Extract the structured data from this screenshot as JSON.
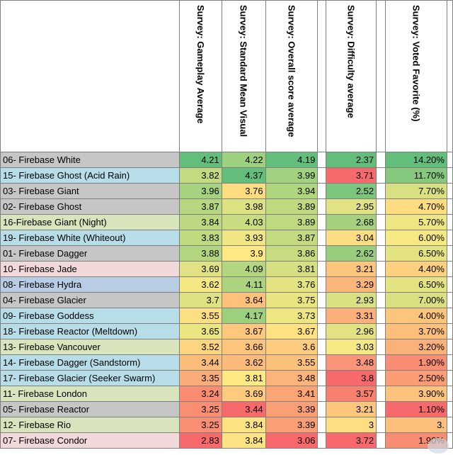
{
  "columns": [
    "Survey: Gameplay Average",
    "Survey: Standard Mean Visual",
    "Survey: Overall score average",
    "Survey: Difficulty average",
    "Survey: Voted Favorite (%)"
  ],
  "rows": [
    {
      "name": "06- Firebase White",
      "bg": "#c6c6c6",
      "gameplay": "4.21",
      "visual": "4.22",
      "overall": "4.19",
      "difficulty": "2.37",
      "favorite": "14.20%",
      "c": [
        "#63be7b",
        "#9dd07f",
        "#63be7b",
        "#63be7b",
        "#63be7b"
      ]
    },
    {
      "name": "15- Firebase Ghost (Acid Rain)",
      "bg": "#b7dde8",
      "gameplay": "3.82",
      "visual": "4.37",
      "overall": "3.99",
      "difficulty": "3.71",
      "favorite": "11.70%",
      "c": [
        "#c2db80",
        "#63be7b",
        "#a2d17f",
        "#f8696b",
        "#86c87d"
      ]
    },
    {
      "name": "03- Firebase Giant",
      "bg": "#c6c6c6",
      "gameplay": "3.96",
      "visual": "3.76",
      "overall": "3.94",
      "difficulty": "2.52",
      "favorite": "7.70%",
      "c": [
        "#a6d27f",
        "#fedd81",
        "#b0d57f",
        "#7cc57d",
        "#d8e081"
      ]
    },
    {
      "name": "02- Firebase Ghost",
      "bg": "#c6c6c6",
      "gameplay": "3.87",
      "visual": "3.98",
      "overall": "3.89",
      "difficulty": "2.95",
      "favorite": "4.70%",
      "c": [
        "#b6d680",
        "#dce182",
        "#bfd980",
        "#e0e283",
        "#fedd81"
      ]
    },
    {
      "name": "16-Firebase Giant (Night)",
      "bg": "#d7e4bc",
      "gameplay": "3.84",
      "visual": "4.03",
      "overall": "3.89",
      "difficulty": "2.68",
      "favorite": "5.70%",
      "c": [
        "#bcd880",
        "#c8dc81",
        "#bfd980",
        "#a5d17f",
        "#eee583"
      ]
    },
    {
      "name": "19- Firebase White (Whiteout)",
      "bg": "#b7dde8",
      "gameplay": "3.83",
      "visual": "3.93",
      "overall": "3.87",
      "difficulty": "3.04",
      "favorite": "6.00%",
      "c": [
        "#bed980",
        "#f0e683",
        "#c4da80",
        "#fcdd81",
        "#f6e883"
      ]
    },
    {
      "name": "01- Firebase Dagger",
      "bg": "#c6c6c6",
      "gameplay": "3.88",
      "visual": "3.9",
      "overall": "3.86",
      "difficulty": "2.62",
      "favorite": "6.50%",
      "c": [
        "#b4d580",
        "#fde883",
        "#c7db81",
        "#98cd7e",
        "#e4e382"
      ]
    },
    {
      "name": "10- Firebase Jade",
      "bg": "#f2d9d9",
      "gameplay": "3.69",
      "visual": "4.09",
      "overall": "3.81",
      "difficulty": "3.21",
      "favorite": "4.40%",
      "c": [
        "#e0e283",
        "#b4d680",
        "#d6df82",
        "#fcc67c",
        "#fdd07f"
      ]
    },
    {
      "name": "08- Firebase Hydra",
      "bg": "#b8cce4",
      "gameplay": "3.62",
      "visual": "4.11",
      "overall": "3.76",
      "difficulty": "3.29",
      "favorite": "6.50%",
      "c": [
        "#f5e883",
        "#aed37f",
        "#e4e382",
        "#fbb67a",
        "#e4e382"
      ]
    },
    {
      "name": "04- Firebase Glacier",
      "bg": "#c6c6c6",
      "gameplay": "3.7",
      "visual": "3.64",
      "overall": "3.75",
      "difficulty": "2.93",
      "favorite": "7.00%",
      "c": [
        "#dde182",
        "#fdc17c",
        "#e8e482",
        "#d8e081",
        "#dae082"
      ]
    },
    {
      "name": "09- Firebase Goddess",
      "bg": "#b7dde8",
      "gameplay": "3.55",
      "visual": "4.17",
      "overall": "3.73",
      "difficulty": "3.31",
      "favorite": "4.00%",
      "c": [
        "#fdde82",
        "#9ccf7e",
        "#eee583",
        "#fbb179",
        "#fcc57c"
      ]
    },
    {
      "name": "18- Firebase Reactor (Meltdown)",
      "bg": "#b7dde8",
      "gameplay": "3.65",
      "visual": "3.67",
      "overall": "3.67",
      "difficulty": "2.96",
      "favorite": "3.70%",
      "c": [
        "#ebe582",
        "#fdc77d",
        "#fee282",
        "#e3e282",
        "#fcbe7b"
      ]
    },
    {
      "name": "13- Firebase Vancouver",
      "bg": "#d7e4bc",
      "gameplay": "3.52",
      "visual": "3.66",
      "overall": "3.6",
      "difficulty": "3.03",
      "favorite": "3.20%",
      "c": [
        "#fdd47f",
        "#fdc57c",
        "#fdcc7e",
        "#f6e883",
        "#fbb27a"
      ]
    },
    {
      "name": "14- Firebase Dagger (Sandstorm)",
      "bg": "#b7dde8",
      "gameplay": "3.44",
      "visual": "3.62",
      "overall": "3.55",
      "difficulty": "3.48",
      "favorite": "1.90%",
      "c": [
        "#fcbd7b",
        "#fcbb7b",
        "#fcc27c",
        "#f9967a",
        "#f98d73"
      ]
    },
    {
      "name": "17- Firebase Glacier (Seeker Swarm)",
      "bg": "#b7dde8",
      "gameplay": "3.35",
      "visual": "3.81",
      "overall": "3.48",
      "difficulty": "3.8",
      "favorite": "2.50%",
      "c": [
        "#fbad79",
        "#fee983",
        "#fcb47a",
        "#f8696b",
        "#fa9d75"
      ]
    },
    {
      "name": "11- Firebase London",
      "bg": "#d7e4bc",
      "gameplay": "3.24",
      "visual": "3.69",
      "overall": "3.41",
      "difficulty": "3.57",
      "favorite": "3.90%",
      "c": [
        "#fa8c73",
        "#fdcb7e",
        "#fba577",
        "#f8806f",
        "#fcc37c"
      ]
    },
    {
      "name": "05- Firebase Reactor",
      "bg": "#c6c6c6",
      "gameplay": "3.25",
      "visual": "3.44",
      "overall": "3.39",
      "difficulty": "3.21",
      "favorite": "1.10%",
      "c": [
        "#fa8e73",
        "#f8696b",
        "#fa9f76",
        "#fcc67c",
        "#f8696b"
      ]
    },
    {
      "name": "12- Firebase Rio",
      "bg": "#d7e4bc",
      "gameplay": "3.25",
      "visual": "3.84",
      "overall": "3.39",
      "difficulty": "3",
      "favorite": "3.",
      "c": [
        "#fa8e73",
        "#fee382",
        "#fa9f76",
        "#fede81",
        "#fcc07c"
      ]
    },
    {
      "name": "07- Firebase Condor",
      "bg": "#f2d9d9",
      "gameplay": "2.83",
      "visual": "3.84",
      "overall": "3.06",
      "difficulty": "3.72",
      "favorite": "1.90%",
      "c": [
        "#f8696b",
        "#fee382",
        "#f8696b",
        "#f8696b",
        "#f98d73"
      ]
    }
  ]
}
